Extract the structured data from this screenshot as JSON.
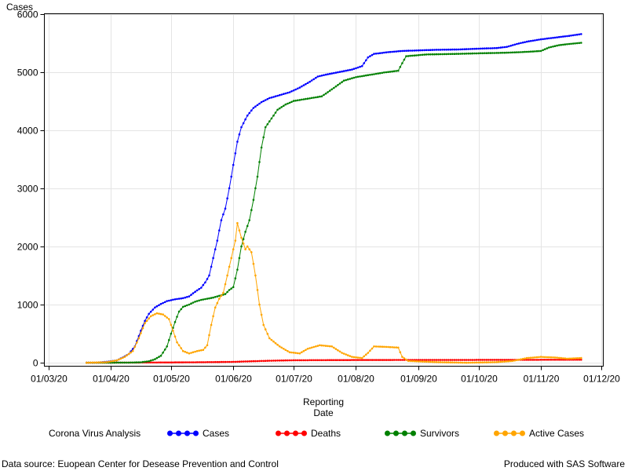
{
  "chart_data": {
    "type": "line",
    "ylabel": "Cases",
    "xlabel_lines": [
      "Reporting",
      "Date"
    ],
    "legend_title": "Corona Virus Analysis",
    "legend_placement": "bottom",
    "grid": true,
    "x_axis": {
      "ticks": [
        {
          "date": "2020-03-01",
          "label": "01/03/20"
        },
        {
          "date": "2020-04-01",
          "label": "01/04/20"
        },
        {
          "date": "2020-05-01",
          "label": "01/05/20"
        },
        {
          "date": "2020-06-01",
          "label": "01/06/20"
        },
        {
          "date": "2020-07-01",
          "label": "01/07/20"
        },
        {
          "date": "2020-08-01",
          "label": "01/08/20"
        },
        {
          "date": "2020-09-01",
          "label": "01/09/20"
        },
        {
          "date": "2020-10-01",
          "label": "01/10/20"
        },
        {
          "date": "2020-11-01",
          "label": "01/11/20"
        },
        {
          "date": "2020-12-01",
          "label": "01/12/20"
        }
      ],
      "range": [
        "2020-02-28",
        "2020-12-02"
      ]
    },
    "y_axis": {
      "ticks": [
        0,
        1000,
        2000,
        3000,
        4000,
        5000,
        6000
      ],
      "ylim": [
        -60,
        6000
      ]
    },
    "series": [
      {
        "name": "Cases",
        "color": "#0000ff",
        "points": [
          [
            "2020-03-20",
            0
          ],
          [
            "2020-03-25",
            2
          ],
          [
            "2020-03-30",
            15
          ],
          [
            "2020-04-04",
            40
          ],
          [
            "2020-04-07",
            90
          ],
          [
            "2020-04-10",
            150
          ],
          [
            "2020-04-13",
            280
          ],
          [
            "2020-04-16",
            550
          ],
          [
            "2020-04-18",
            720
          ],
          [
            "2020-04-20",
            840
          ],
          [
            "2020-04-23",
            950
          ],
          [
            "2020-04-26",
            1010
          ],
          [
            "2020-04-29",
            1060
          ],
          [
            "2020-05-03",
            1090
          ],
          [
            "2020-05-07",
            1110
          ],
          [
            "2020-05-10",
            1140
          ],
          [
            "2020-05-13",
            1220
          ],
          [
            "2020-05-16",
            1290
          ],
          [
            "2020-05-18",
            1380
          ],
          [
            "2020-05-20",
            1500
          ],
          [
            "2020-05-22",
            1800
          ],
          [
            "2020-05-24",
            2100
          ],
          [
            "2020-05-26",
            2450
          ],
          [
            "2020-05-28",
            2650
          ],
          [
            "2020-05-30",
            3000
          ],
          [
            "2020-06-01",
            3400
          ],
          [
            "2020-06-03",
            3800
          ],
          [
            "2020-06-05",
            4050
          ],
          [
            "2020-06-08",
            4250
          ],
          [
            "2020-06-11",
            4380
          ],
          [
            "2020-06-15",
            4480
          ],
          [
            "2020-06-19",
            4550
          ],
          [
            "2020-06-24",
            4600
          ],
          [
            "2020-06-29",
            4650
          ],
          [
            "2020-07-04",
            4730
          ],
          [
            "2020-07-09",
            4830
          ],
          [
            "2020-07-13",
            4920
          ],
          [
            "2020-07-18",
            4960
          ],
          [
            "2020-07-24",
            5000
          ],
          [
            "2020-07-30",
            5040
          ],
          [
            "2020-08-04",
            5100
          ],
          [
            "2020-08-07",
            5250
          ],
          [
            "2020-08-10",
            5310
          ],
          [
            "2020-08-17",
            5340
          ],
          [
            "2020-08-24",
            5360
          ],
          [
            "2020-09-01",
            5370
          ],
          [
            "2020-09-10",
            5380
          ],
          [
            "2020-09-20",
            5385
          ],
          [
            "2020-10-01",
            5400
          ],
          [
            "2020-10-10",
            5410
          ],
          [
            "2020-10-15",
            5430
          ],
          [
            "2020-10-20",
            5480
          ],
          [
            "2020-10-25",
            5520
          ],
          [
            "2020-11-01",
            5560
          ],
          [
            "2020-11-08",
            5590
          ],
          [
            "2020-11-15",
            5620
          ],
          [
            "2020-11-21",
            5650
          ]
        ]
      },
      {
        "name": "Deaths",
        "color": "#ff0000",
        "points": [
          [
            "2020-03-20",
            0
          ],
          [
            "2020-04-10",
            2
          ],
          [
            "2020-05-01",
            5
          ],
          [
            "2020-05-20",
            10
          ],
          [
            "2020-06-01",
            15
          ],
          [
            "2020-06-10",
            25
          ],
          [
            "2020-06-20",
            35
          ],
          [
            "2020-07-01",
            42
          ],
          [
            "2020-07-20",
            45
          ],
          [
            "2020-08-10",
            47
          ],
          [
            "2020-09-10",
            48
          ],
          [
            "2020-10-10",
            49
          ],
          [
            "2020-11-01",
            50
          ],
          [
            "2020-11-21",
            52
          ]
        ]
      },
      {
        "name": "Survivors",
        "color": "#008000",
        "points": [
          [
            "2020-03-20",
            0
          ],
          [
            "2020-04-10",
            2
          ],
          [
            "2020-04-16",
            8
          ],
          [
            "2020-04-20",
            25
          ],
          [
            "2020-04-23",
            60
          ],
          [
            "2020-04-26",
            120
          ],
          [
            "2020-04-29",
            280
          ],
          [
            "2020-05-01",
            500
          ],
          [
            "2020-05-03",
            700
          ],
          [
            "2020-05-05",
            880
          ],
          [
            "2020-05-07",
            960
          ],
          [
            "2020-05-10",
            1000
          ],
          [
            "2020-05-13",
            1050
          ],
          [
            "2020-05-16",
            1080
          ],
          [
            "2020-05-19",
            1100
          ],
          [
            "2020-05-22",
            1120
          ],
          [
            "2020-05-25",
            1150
          ],
          [
            "2020-05-28",
            1180
          ],
          [
            "2020-05-30",
            1250
          ],
          [
            "2020-06-01",
            1300
          ],
          [
            "2020-06-03",
            1600
          ],
          [
            "2020-06-05",
            2000
          ],
          [
            "2020-06-07",
            2250
          ],
          [
            "2020-06-09",
            2450
          ],
          [
            "2020-06-11",
            2800
          ],
          [
            "2020-06-13",
            3200
          ],
          [
            "2020-06-15",
            3700
          ],
          [
            "2020-06-17",
            4050
          ],
          [
            "2020-06-20",
            4200
          ],
          [
            "2020-06-23",
            4350
          ],
          [
            "2020-06-27",
            4440
          ],
          [
            "2020-07-01",
            4500
          ],
          [
            "2020-07-08",
            4540
          ],
          [
            "2020-07-15",
            4580
          ],
          [
            "2020-07-20",
            4700
          ],
          [
            "2020-07-26",
            4850
          ],
          [
            "2020-08-01",
            4910
          ],
          [
            "2020-08-08",
            4950
          ],
          [
            "2020-08-15",
            4990
          ],
          [
            "2020-08-22",
            5020
          ],
          [
            "2020-08-24",
            5150
          ],
          [
            "2020-08-26",
            5270
          ],
          [
            "2020-09-05",
            5300
          ],
          [
            "2020-09-20",
            5310
          ],
          [
            "2020-10-01",
            5320
          ],
          [
            "2020-10-15",
            5330
          ],
          [
            "2020-10-25",
            5345
          ],
          [
            "2020-11-01",
            5360
          ],
          [
            "2020-11-05",
            5420
          ],
          [
            "2020-11-10",
            5460
          ],
          [
            "2020-11-15",
            5480
          ],
          [
            "2020-11-21",
            5500
          ]
        ]
      },
      {
        "name": "Active Cases",
        "color": "#ffa500",
        "points": [
          [
            "2020-03-20",
            0
          ],
          [
            "2020-03-30",
            10
          ],
          [
            "2020-04-04",
            40
          ],
          [
            "2020-04-08",
            100
          ],
          [
            "2020-04-12",
            200
          ],
          [
            "2020-04-15",
            420
          ],
          [
            "2020-04-18",
            680
          ],
          [
            "2020-04-21",
            800
          ],
          [
            "2020-04-24",
            850
          ],
          [
            "2020-04-27",
            830
          ],
          [
            "2020-04-30",
            750
          ],
          [
            "2020-05-02",
            550
          ],
          [
            "2020-05-04",
            350
          ],
          [
            "2020-05-07",
            200
          ],
          [
            "2020-05-10",
            160
          ],
          [
            "2020-05-14",
            200
          ],
          [
            "2020-05-17",
            220
          ],
          [
            "2020-05-19",
            300
          ],
          [
            "2020-05-21",
            650
          ],
          [
            "2020-05-23",
            950
          ],
          [
            "2020-05-25",
            1100
          ],
          [
            "2020-05-27",
            1200
          ],
          [
            "2020-05-29",
            1500
          ],
          [
            "2020-05-31",
            1800
          ],
          [
            "2020-06-02",
            2100
          ],
          [
            "2020-06-03",
            2400
          ],
          [
            "2020-06-05",
            2150
          ],
          [
            "2020-06-07",
            1950
          ],
          [
            "2020-06-08",
            2000
          ],
          [
            "2020-06-10",
            1900
          ],
          [
            "2020-06-12",
            1500
          ],
          [
            "2020-06-14",
            1000
          ],
          [
            "2020-06-16",
            650
          ],
          [
            "2020-06-19",
            420
          ],
          [
            "2020-06-24",
            280
          ],
          [
            "2020-06-29",
            180
          ],
          [
            "2020-07-04",
            160
          ],
          [
            "2020-07-08",
            240
          ],
          [
            "2020-07-14",
            300
          ],
          [
            "2020-07-20",
            280
          ],
          [
            "2020-07-25",
            170
          ],
          [
            "2020-07-30",
            100
          ],
          [
            "2020-08-04",
            80
          ],
          [
            "2020-08-07",
            170
          ],
          [
            "2020-08-10",
            280
          ],
          [
            "2020-08-17",
            270
          ],
          [
            "2020-08-22",
            260
          ],
          [
            "2020-08-24",
            100
          ],
          [
            "2020-08-27",
            30
          ],
          [
            "2020-09-10",
            10
          ],
          [
            "2020-09-25",
            0
          ],
          [
            "2020-10-10",
            10
          ],
          [
            "2020-10-18",
            30
          ],
          [
            "2020-10-25",
            80
          ],
          [
            "2020-11-01",
            100
          ],
          [
            "2020-11-08",
            90
          ],
          [
            "2020-11-14",
            70
          ],
          [
            "2020-11-21",
            80
          ]
        ]
      }
    ]
  },
  "footer": {
    "left": "Data source: Euopean Center for Desease Prevention and Control",
    "right": "Produced with SAS Software"
  }
}
